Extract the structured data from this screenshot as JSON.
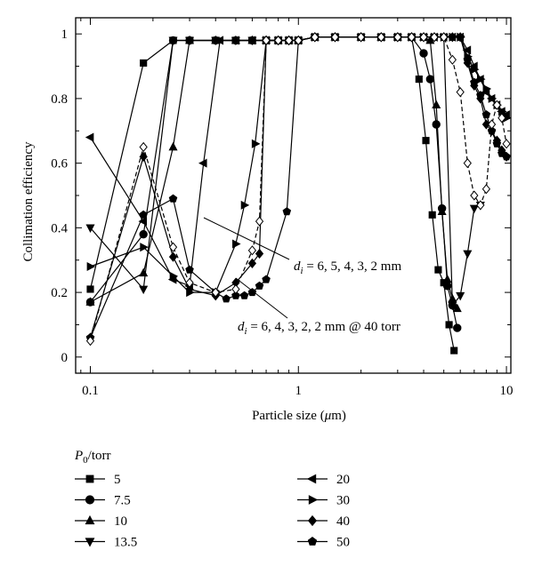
{
  "chart_data": {
    "type": "line",
    "title": "",
    "xlabel_main": "Particle size (",
    "xlabel_mu": "μ",
    "xlabel_tail": "m)",
    "ylabel": "Collimation efficiency",
    "x_scale": "log",
    "xlim": [
      0.085,
      10.5
    ],
    "ylim": [
      -0.05,
      1.05
    ],
    "x_ticks": [
      {
        "value": 0.1,
        "label": "0.1"
      },
      {
        "value": 1,
        "label": "1"
      },
      {
        "value": 10,
        "label": "10"
      }
    ],
    "y_ticks": [
      {
        "value": 0,
        "label": "0"
      },
      {
        "value": 0.2,
        "label": "0.2"
      },
      {
        "value": 0.4,
        "label": "0.4"
      },
      {
        "value": 0.6,
        "label": "0.6"
      },
      {
        "value": 0.8,
        "label": "0.8"
      },
      {
        "value": 1,
        "label": "1"
      }
    ],
    "grid": false,
    "legend_title_main": "P",
    "legend_title_sub": "0",
    "legend_title_tail": "/torr",
    "legend_position": "below",
    "annotations": [
      {
        "text_main": "d",
        "text_sub": "i",
        "text_rest": " = 6, 5, 4, 3, 2 mm"
      },
      {
        "text_main": "d",
        "text_sub": "i",
        "text_rest": " = 6, 4, 3, 2, 2 mm @ 40 torr"
      }
    ],
    "series": [
      {
        "name": "5",
        "marker": "square",
        "dashed": false,
        "x": [
          0.1,
          0.18,
          0.25,
          0.3,
          0.4,
          0.5,
          0.6,
          0.7,
          0.8,
          0.9,
          1,
          1.2,
          1.5,
          2,
          2.5,
          3,
          3.5,
          3.8,
          4.1,
          4.4,
          4.7,
          5.0,
          5.3,
          5.6
        ],
        "y": [
          0.21,
          0.91,
          0.98,
          0.98,
          0.98,
          0.98,
          0.98,
          0.98,
          0.98,
          0.98,
          0.98,
          0.99,
          0.99,
          0.99,
          0.99,
          0.99,
          0.99,
          0.86,
          0.67,
          0.44,
          0.27,
          0.23,
          0.1,
          0.02
        ]
      },
      {
        "name": "7.5",
        "marker": "circle",
        "dashed": false,
        "x": [
          0.1,
          0.18,
          0.25,
          0.3,
          0.4,
          0.5,
          0.6,
          0.7,
          0.8,
          0.9,
          1,
          1.2,
          1.5,
          2,
          2.5,
          3,
          3.5,
          4.0,
          4.3,
          4.6,
          4.9,
          5.2,
          5.5,
          5.8
        ],
        "y": [
          0.17,
          0.38,
          0.98,
          0.98,
          0.98,
          0.98,
          0.98,
          0.98,
          0.98,
          0.98,
          0.98,
          0.99,
          0.99,
          0.99,
          0.99,
          0.99,
          0.99,
          0.94,
          0.86,
          0.72,
          0.46,
          0.22,
          0.16,
          0.09
        ]
      },
      {
        "name": "10",
        "marker": "triangle-up",
        "dashed": false,
        "x": [
          0.1,
          0.18,
          0.25,
          0.3,
          0.4,
          0.5,
          0.6,
          0.7,
          0.8,
          0.9,
          1,
          1.2,
          1.5,
          2,
          2.5,
          3,
          3.5,
          4.0,
          4.3,
          4.6,
          4.9,
          5.2,
          5.5,
          5.8
        ],
        "y": [
          0.17,
          0.26,
          0.65,
          0.98,
          0.98,
          0.98,
          0.98,
          0.98,
          0.98,
          0.98,
          0.98,
          0.99,
          0.99,
          0.99,
          0.99,
          0.99,
          0.99,
          0.99,
          0.98,
          0.78,
          0.45,
          0.24,
          0.18,
          0.15
        ]
      },
      {
        "name": "13.5",
        "marker": "triangle-down",
        "dashed": false,
        "x": [
          0.1,
          0.18,
          0.25,
          0.3,
          0.4,
          0.5,
          0.6,
          0.7,
          0.8,
          0.9,
          1,
          1.2,
          1.5,
          2,
          2.5,
          3,
          3.5,
          4.0,
          4.5,
          5.0,
          5.5,
          6.0,
          6.5,
          7.0,
          7.5
        ],
        "y": [
          0.4,
          0.21,
          0.98,
          0.98,
          0.98,
          0.98,
          0.98,
          0.98,
          0.98,
          0.98,
          0.98,
          0.99,
          0.99,
          0.99,
          0.99,
          0.99,
          0.99,
          0.99,
          0.99,
          0.99,
          0.16,
          0.19,
          0.32,
          0.46,
          0.47
        ]
      },
      {
        "name": "20",
        "marker": "triangle-left",
        "dashed": false,
        "x": [
          0.1,
          0.18,
          0.25,
          0.3,
          0.35,
          0.42,
          0.5,
          0.6,
          0.7,
          0.8,
          0.9,
          1,
          1.2,
          1.5,
          2,
          2.5,
          3,
          3.5,
          4.0,
          4.5,
          5.0,
          5.5,
          6.0,
          6.5,
          7.0,
          7.5,
          8.0,
          8.5,
          9.0,
          9.5,
          10.0
        ],
        "y": [
          0.68,
          0.42,
          0.24,
          0.22,
          0.6,
          0.98,
          0.98,
          0.98,
          0.98,
          0.98,
          0.98,
          0.98,
          0.99,
          0.99,
          0.99,
          0.99,
          0.99,
          0.99,
          0.99,
          0.99,
          0.99,
          0.99,
          0.99,
          0.95,
          0.9,
          0.86,
          0.82,
          0.8,
          0.78,
          0.76,
          0.75
        ]
      },
      {
        "name": "30",
        "marker": "triangle-right",
        "dashed": false,
        "x": [
          0.1,
          0.18,
          0.25,
          0.3,
          0.4,
          0.5,
          0.55,
          0.62,
          0.7,
          0.8,
          0.9,
          1,
          1.2,
          1.5,
          2,
          2.5,
          3,
          3.5,
          4.0,
          4.5,
          5.0,
          5.5,
          6.0,
          6.5,
          7.0,
          7.5,
          8.0,
          8.5,
          9.0,
          9.5,
          10.0
        ],
        "y": [
          0.28,
          0.34,
          0.25,
          0.2,
          0.2,
          0.35,
          0.47,
          0.66,
          0.98,
          0.98,
          0.98,
          0.98,
          0.99,
          0.99,
          0.99,
          0.99,
          0.99,
          0.99,
          0.99,
          0.99,
          0.99,
          0.99,
          0.99,
          0.93,
          0.89,
          0.86,
          0.83,
          0.8,
          0.78,
          0.76,
          0.74
        ]
      },
      {
        "name": "40",
        "marker": "diamond-filled",
        "dashed": false,
        "x": [
          0.1,
          0.18,
          0.25,
          0.3,
          0.4,
          0.5,
          0.6,
          0.65,
          0.7,
          0.8,
          0.9,
          1,
          1.2,
          1.5,
          2,
          2.5,
          3,
          3.5,
          4.0,
          4.5,
          5.0,
          5.5,
          6.0,
          6.5,
          7.0,
          7.5,
          8.0,
          8.5,
          9.0,
          9.5,
          10.0
        ],
        "y": [
          0.06,
          0.62,
          0.31,
          0.21,
          0.19,
          0.23,
          0.29,
          0.32,
          0.98,
          0.98,
          0.98,
          0.98,
          0.99,
          0.99,
          0.99,
          0.99,
          0.99,
          0.99,
          0.99,
          0.99,
          0.99,
          0.99,
          0.99,
          0.91,
          0.84,
          0.8,
          0.72,
          0.7,
          0.67,
          0.64,
          0.62
        ]
      },
      {
        "name": "50",
        "marker": "pentagon",
        "dashed": false,
        "x": [
          0.1,
          0.18,
          0.25,
          0.3,
          0.4,
          0.45,
          0.5,
          0.55,
          0.6,
          0.65,
          0.7,
          0.88,
          1.0,
          1.2,
          1.5,
          2,
          2.5,
          3,
          3.5,
          4.0,
          4.5,
          5.0,
          5.5,
          6.0,
          6.5,
          7.0,
          7.5,
          8.0,
          8.5,
          9.0,
          9.5,
          10.0
        ],
        "y": [
          0.06,
          0.44,
          0.49,
          0.27,
          0.2,
          0.18,
          0.19,
          0.19,
          0.2,
          0.22,
          0.24,
          0.45,
          0.98,
          0.99,
          0.99,
          0.99,
          0.99,
          0.99,
          0.99,
          0.99,
          0.99,
          0.99,
          0.99,
          0.99,
          0.92,
          0.85,
          0.81,
          0.75,
          0.7,
          0.66,
          0.63,
          0.62
        ]
      },
      {
        "name": "",
        "marker": "diamond-open",
        "dashed": true,
        "x": [
          0.1,
          0.18,
          0.25,
          0.3,
          0.4,
          0.5,
          0.6,
          0.65,
          0.7,
          0.8,
          0.9,
          1,
          1.2,
          1.5,
          2,
          2.5,
          3,
          3.5,
          4.0,
          4.5,
          5.0,
          5.5,
          6.0,
          6.5,
          7.0,
          7.5,
          8.0,
          8.5,
          9.0,
          9.5,
          10.0
        ],
        "y": [
          0.05,
          0.65,
          0.34,
          0.23,
          0.2,
          0.21,
          0.33,
          0.42,
          0.98,
          0.98,
          0.98,
          0.98,
          0.99,
          0.99,
          0.99,
          0.99,
          0.99,
          0.99,
          0.99,
          0.99,
          0.99,
          0.92,
          0.82,
          0.6,
          0.5,
          0.47,
          0.52,
          0.72,
          0.78,
          0.74,
          0.66
        ]
      }
    ]
  }
}
